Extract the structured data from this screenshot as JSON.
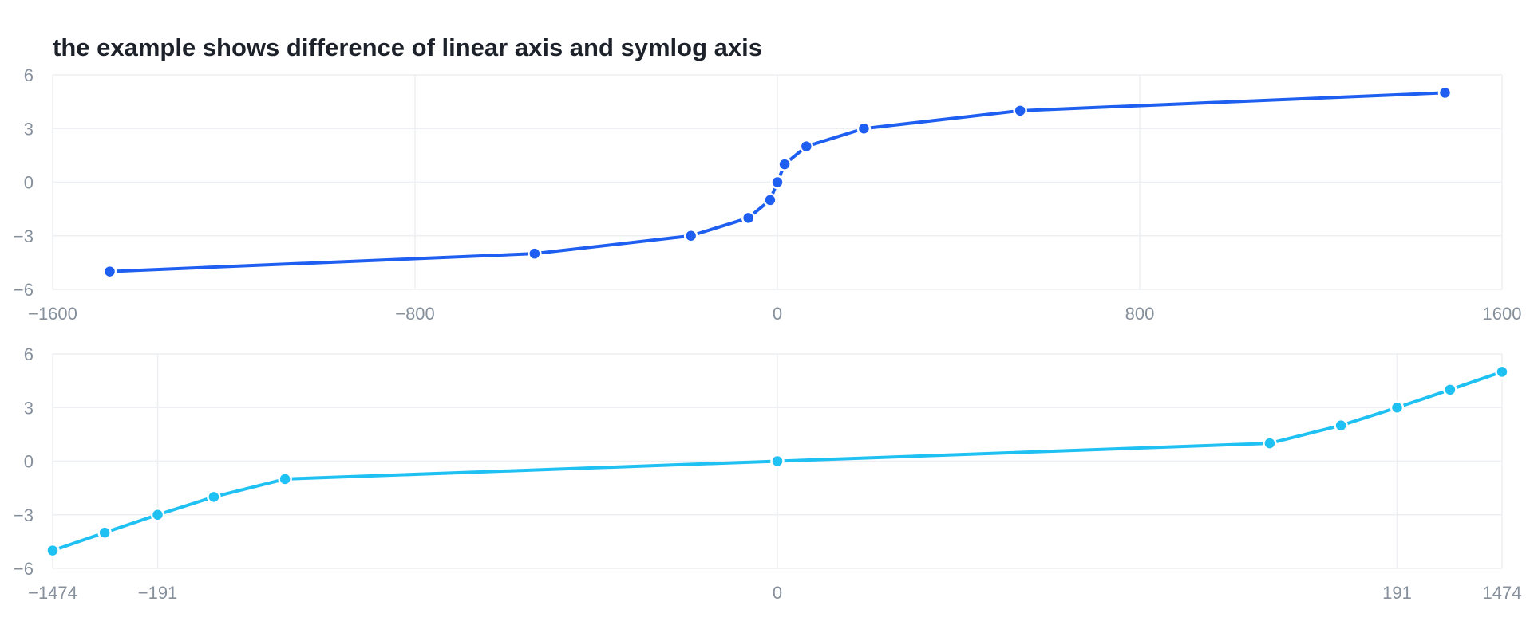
{
  "title": "the example shows difference of linear axis and symlog axis",
  "chart_data": [
    {
      "type": "line",
      "title": "the example shows difference of linear axis and symlog axis",
      "x_scale": "linear",
      "xlim": [
        -1600,
        1600
      ],
      "ylim": [
        -6,
        6
      ],
      "x_ticks": [
        -1600,
        -800,
        0,
        800,
        1600
      ],
      "x_tick_labels": [
        "−1600",
        "−800",
        "0",
        "800",
        "1600"
      ],
      "y_ticks": [
        -6,
        -3,
        0,
        3,
        6
      ],
      "y_tick_labels": [
        "−6",
        "−3",
        "0",
        "3",
        "6"
      ],
      "grid": true,
      "color": "#1e5ef0",
      "x": [
        -1474,
        -536,
        -191,
        -64,
        -16,
        0,
        16,
        64,
        191,
        536,
        1474
      ],
      "y": [
        -5,
        -4,
        -3,
        -2,
        -1,
        0,
        1,
        2,
        3,
        4,
        5
      ]
    },
    {
      "type": "line",
      "x_scale": "symlog",
      "xlim": [
        -1474,
        1474
      ],
      "ylim": [
        -6,
        6
      ],
      "x_ticks": [
        -1474,
        -191,
        0,
        191,
        1474
      ],
      "x_tick_labels": [
        "−1474",
        "−191",
        "0",
        "191",
        "1474"
      ],
      "y_ticks": [
        -6,
        -3,
        0,
        3,
        6
      ],
      "y_tick_labels": [
        "−6",
        "−3",
        "0",
        "3",
        "6"
      ],
      "grid": true,
      "color": "#1fc0f2",
      "x": [
        -1474,
        -536,
        -191,
        -64,
        -16,
        0,
        16,
        64,
        191,
        536,
        1474
      ],
      "y": [
        -5,
        -4,
        -3,
        -2,
        -1,
        0,
        1,
        2,
        3,
        4,
        5
      ]
    }
  ]
}
